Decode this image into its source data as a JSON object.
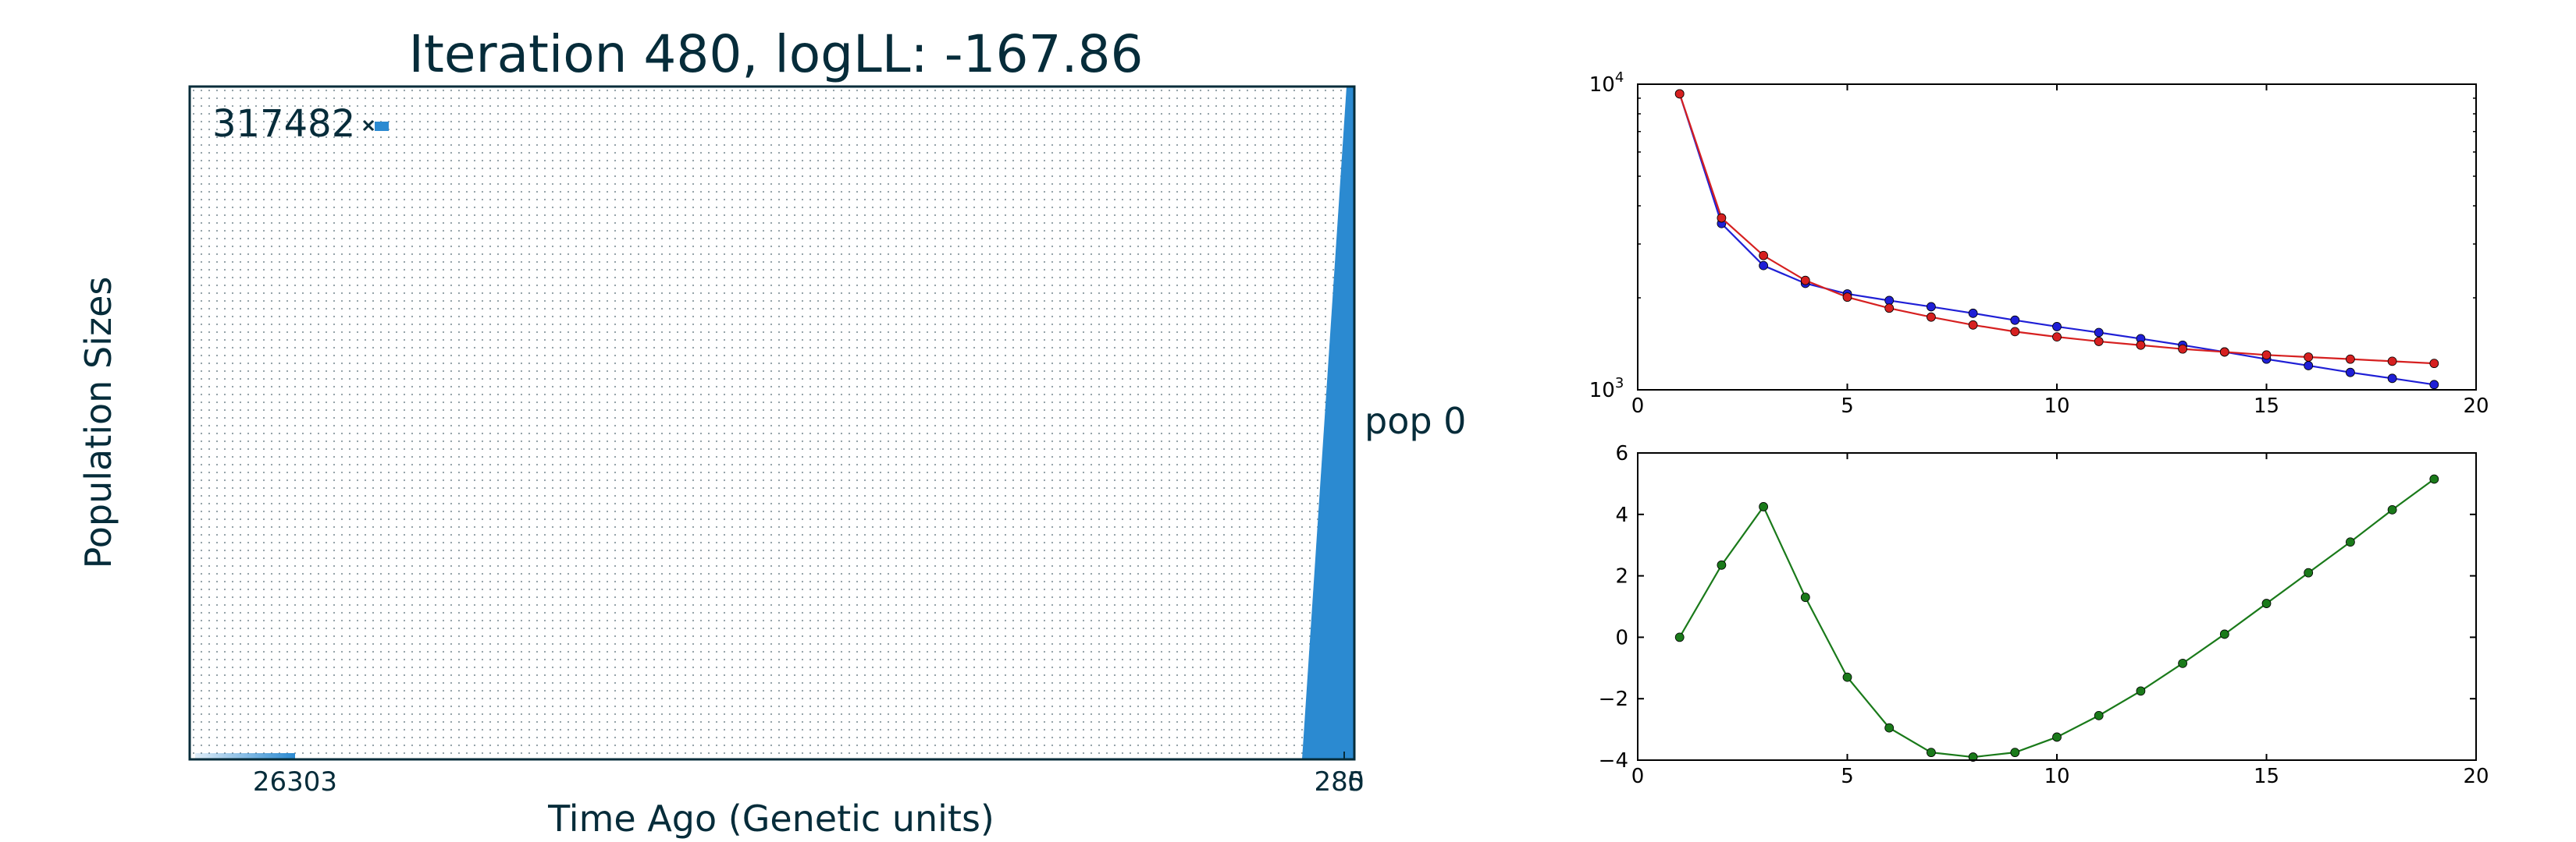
{
  "demography": {
    "title": "Iteration 480, logLL:    -167.86",
    "ylabel": "Population Sizes",
    "xlabel": "Time Ago (Genetic units)",
    "size_label": "317482",
    "pop_label": "pop 0",
    "tick_labels": [
      "26303",
      "285",
      "0"
    ],
    "fill_color": "#2b8ad1",
    "text_color": "#062c3a",
    "grid": true
  },
  "chart_data": [
    {
      "type": "line",
      "name": "population-size-curves",
      "x": [
        1,
        2,
        3,
        4,
        5,
        6,
        7,
        8,
        9,
        10,
        11,
        12,
        13,
        14,
        15,
        16,
        17,
        18,
        19
      ],
      "series": [
        {
          "color": "#1f1fd6",
          "values": [
            9300,
            3500,
            2550,
            2230,
            2060,
            1960,
            1870,
            1780,
            1690,
            1610,
            1540,
            1470,
            1400,
            1330,
            1260,
            1200,
            1140,
            1090,
            1040
          ]
        },
        {
          "color": "#d62020",
          "values": [
            9300,
            3650,
            2750,
            2280,
            2010,
            1850,
            1730,
            1630,
            1550,
            1490,
            1440,
            1400,
            1360,
            1330,
            1300,
            1280,
            1260,
            1240,
            1220
          ]
        }
      ],
      "xlim": [
        0,
        20
      ],
      "ylim": [
        1000,
        10000
      ],
      "yscale": "log",
      "xticks": [
        "0",
        "5",
        "10",
        "15",
        "20"
      ],
      "yticks": [
        {
          "base": "10",
          "exp": "3"
        },
        {
          "base": "10",
          "exp": "4"
        }
      ],
      "grid": false
    },
    {
      "type": "line",
      "name": "difference-curve",
      "x": [
        1,
        2,
        3,
        4,
        5,
        6,
        7,
        8,
        9,
        10,
        11,
        12,
        13,
        14,
        15,
        16,
        17,
        18,
        19
      ],
      "series": [
        {
          "color": "#1a7a1a",
          "values": [
            0.0,
            2.35,
            4.25,
            1.3,
            -1.3,
            -2.95,
            -3.75,
            -3.9,
            -3.75,
            -3.25,
            -2.55,
            -1.75,
            -0.85,
            0.1,
            1.1,
            2.1,
            3.1,
            4.15,
            5.15
          ]
        }
      ],
      "xlim": [
        0,
        20
      ],
      "ylim": [
        -4,
        6
      ],
      "xticks": [
        "0",
        "5",
        "10",
        "15",
        "20"
      ],
      "yticks": [
        "−4",
        "−2",
        "0",
        "2",
        "4",
        "6"
      ],
      "grid": false
    }
  ]
}
